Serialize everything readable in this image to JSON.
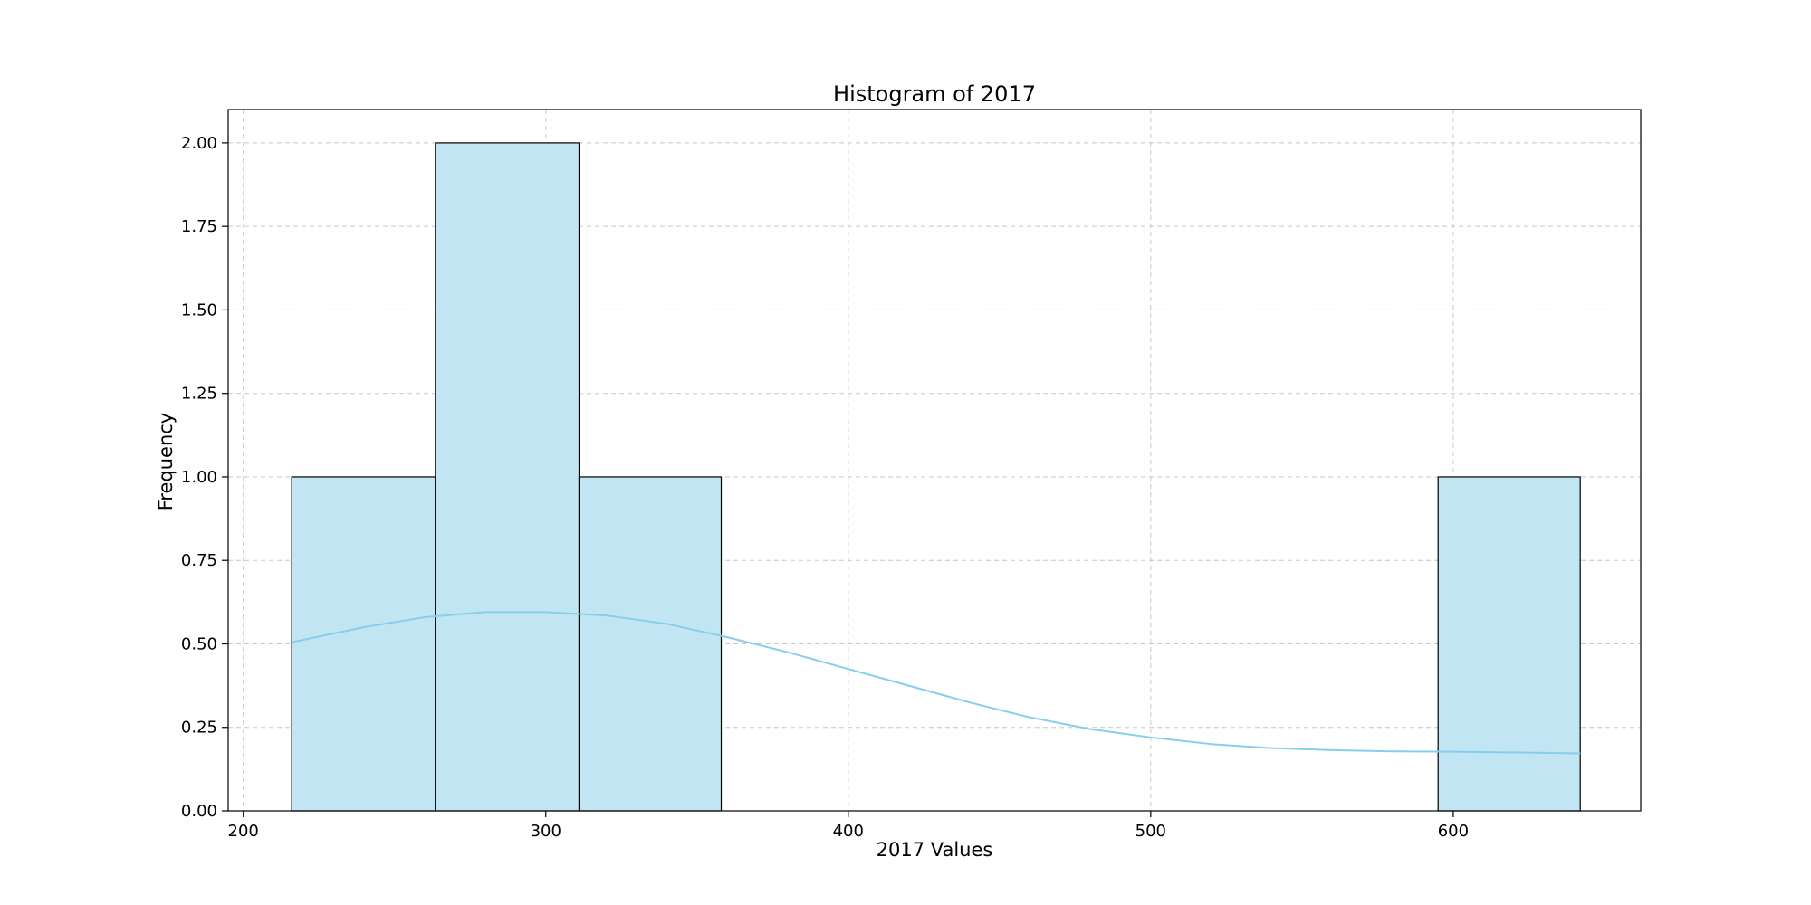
{
  "chart_data": {
    "type": "bar",
    "title": "Histogram of 2017",
    "xlabel": "2017 Values",
    "ylabel": "Frequency",
    "xlim": [
      195,
      662
    ],
    "ylim": [
      0,
      2.1
    ],
    "x_ticks": [
      200,
      300,
      400,
      500,
      600
    ],
    "x_tick_labels": [
      "200",
      "300",
      "400",
      "500",
      "600"
    ],
    "y_ticks": [
      0,
      0.25,
      0.5,
      0.75,
      1.0,
      1.25,
      1.5,
      1.75,
      2.0
    ],
    "y_tick_labels": [
      "0.00",
      "0.25",
      "0.50",
      "0.75",
      "1.00",
      "1.25",
      "1.50",
      "1.75",
      "2.00"
    ],
    "grid": true,
    "bins": [
      {
        "x0": 216,
        "x1": 263.5,
        "count": 1
      },
      {
        "x0": 263.5,
        "x1": 311,
        "count": 2
      },
      {
        "x0": 311,
        "x1": 358,
        "count": 1
      },
      {
        "x0": 358,
        "x1": 405.5,
        "count": 0
      },
      {
        "x0": 405.5,
        "x1": 453,
        "count": 0
      },
      {
        "x0": 453,
        "x1": 500,
        "count": 0
      },
      {
        "x0": 500,
        "x1": 547.5,
        "count": 0
      },
      {
        "x0": 547.5,
        "x1": 595,
        "count": 0
      },
      {
        "x0": 595,
        "x1": 642,
        "count": 1
      }
    ],
    "kde_curve": {
      "x": [
        216,
        240,
        260,
        280,
        300,
        320,
        340,
        360,
        380,
        400,
        420,
        440,
        460,
        480,
        500,
        520,
        540,
        560,
        580,
        600,
        620,
        642
      ],
      "y": [
        0.505,
        0.55,
        0.58,
        0.595,
        0.595,
        0.585,
        0.56,
        0.52,
        0.475,
        0.425,
        0.375,
        0.325,
        0.28,
        0.245,
        0.22,
        0.2,
        0.188,
        0.182,
        0.178,
        0.177,
        0.175,
        0.172
      ]
    },
    "colors": {
      "bar_fill": "#c2e5f3",
      "bar_edge": "#000000",
      "kde_line": "#87ceeb",
      "grid": "#c8c8c8"
    }
  }
}
